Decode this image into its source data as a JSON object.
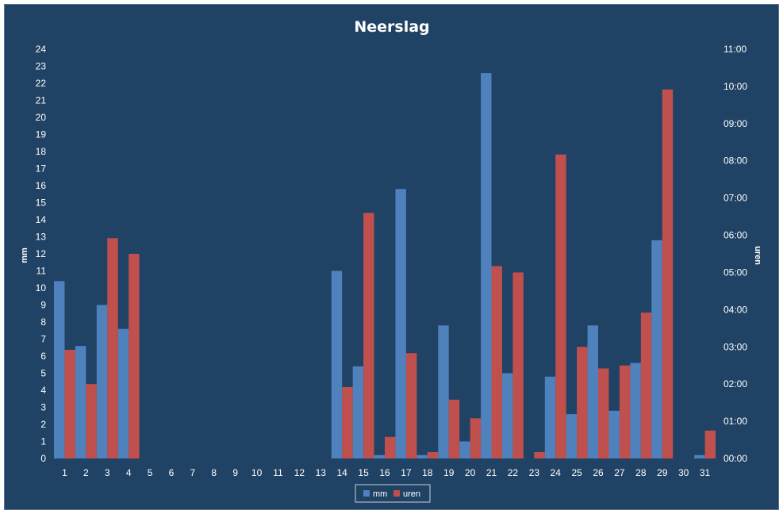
{
  "chart_data": {
    "type": "bar",
    "title": "Neerslag",
    "ylabel": "mm",
    "y2label": "uren",
    "ylim": [
      0,
      24
    ],
    "y2lim": [
      0,
      11
    ],
    "y_ticks": [
      "0",
      "1",
      "2",
      "3",
      "4",
      "5",
      "6",
      "7",
      "8",
      "9",
      "10",
      "11",
      "12",
      "13",
      "14",
      "15",
      "16",
      "17",
      "18",
      "19",
      "20",
      "21",
      "22",
      "23",
      "24"
    ],
    "y2_ticks": [
      "00:00",
      "01:00",
      "02:00",
      "03:00",
      "04:00",
      "05:00",
      "06:00",
      "07:00",
      "08:00",
      "09:00",
      "10:00",
      "11:00"
    ],
    "categories": [
      "1",
      "2",
      "3",
      "4",
      "5",
      "6",
      "7",
      "8",
      "9",
      "10",
      "11",
      "12",
      "13",
      "14",
      "15",
      "16",
      "17",
      "18",
      "19",
      "20",
      "21",
      "22",
      "23",
      "24",
      "25",
      "26",
      "27",
      "28",
      "29",
      "30",
      "31"
    ],
    "legend_position": "bottom",
    "grid": false,
    "series": [
      {
        "name": "mm",
        "axis": "left",
        "color": "#4f81bd",
        "values": [
          10.4,
          6.6,
          9.0,
          7.6,
          0,
          0,
          0,
          0,
          0,
          0,
          0,
          0,
          0,
          11.0,
          5.4,
          0.2,
          15.8,
          0.2,
          7.8,
          1.0,
          22.6,
          5.0,
          0,
          4.8,
          2.6,
          7.8,
          2.8,
          5.6,
          12.8,
          0,
          0.2
        ]
      },
      {
        "name": "uren",
        "axis": "right",
        "color": "#c0504d",
        "values": [
          2.92,
          2.0,
          5.92,
          5.5,
          0,
          0,
          0,
          0,
          0,
          0,
          0,
          0,
          0,
          1.92,
          6.6,
          0.58,
          2.83,
          0.17,
          1.58,
          1.08,
          5.17,
          5.0,
          0.17,
          8.17,
          3.0,
          2.42,
          2.5,
          3.92,
          9.92,
          0,
          0.75
        ]
      }
    ]
  }
}
